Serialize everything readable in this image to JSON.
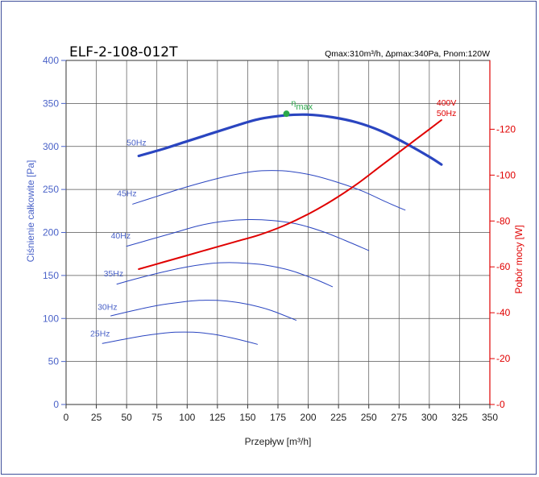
{
  "chart_data": {
    "type": "line",
    "title": "ELF-2-108-012T",
    "specs": "Qmax:310m³/h, Δpmax:340Pa, Pnom:120W",
    "xlabel": "Przepływ [m³/h]",
    "ylabel": "Ciśnienie całkowite [Pa]",
    "y2label": "Pobór mocy [W]",
    "xlim": [
      0,
      350
    ],
    "ylim": [
      0,
      400
    ],
    "y2lim": [
      0,
      150
    ],
    "xticks": [
      0,
      25,
      50,
      75,
      100,
      125,
      150,
      175,
      200,
      225,
      250,
      275,
      300,
      325,
      350
    ],
    "yticks": [
      0,
      50,
      100,
      150,
      200,
      250,
      300,
      350,
      400
    ],
    "y2ticks": [
      0,
      20,
      40,
      60,
      80,
      100,
      120
    ],
    "grid": true,
    "colors": {
      "pressure": "#2a45c0",
      "power": "#e00000",
      "optimum": "#2aa84a",
      "grid": "#555555"
    },
    "series": [
      {
        "name": "50Hz",
        "axis": "pressure",
        "width": 3.2,
        "x": [
          60,
          80,
          100,
          120,
          140,
          160,
          180,
          200,
          220,
          240,
          260,
          280,
          300,
          310
        ],
        "y": [
          289,
          297,
          306,
          315,
          324,
          332,
          336,
          337,
          334,
          328,
          318,
          304,
          288,
          279
        ]
      },
      {
        "name": "45Hz",
        "axis": "pressure",
        "width": 1,
        "x": [
          55,
          75,
          95,
          115,
          135,
          155,
          170,
          185,
          205,
          225,
          245,
          265,
          280
        ],
        "y": [
          233,
          242,
          251,
          259,
          266,
          271,
          272,
          271,
          266,
          258,
          248,
          235,
          226
        ]
      },
      {
        "name": "40Hz",
        "axis": "pressure",
        "width": 1,
        "x": [
          50,
          70,
          90,
          110,
          130,
          150,
          170,
          190,
          210,
          230,
          250
        ],
        "y": [
          184,
          192,
          200,
          208,
          213,
          215,
          214,
          210,
          202,
          191,
          179
        ]
      },
      {
        "name": "35Hz",
        "axis": "pressure",
        "width": 1,
        "x": [
          42,
          60,
          80,
          100,
          120,
          135,
          150,
          165,
          185,
          205,
          220
        ],
        "y": [
          140,
          147,
          154,
          160,
          164,
          165,
          164,
          162,
          156,
          146,
          137
        ]
      },
      {
        "name": "30Hz",
        "axis": "pressure",
        "width": 1,
        "x": [
          37,
          55,
          75,
          95,
          110,
          125,
          140,
          155,
          170,
          190
        ],
        "y": [
          103,
          109,
          115,
          119,
          121,
          121,
          119,
          115,
          109,
          98
        ]
      },
      {
        "name": "25Hz",
        "axis": "pressure",
        "width": 1,
        "x": [
          30,
          45,
          60,
          75,
          90,
          105,
          120,
          135,
          150,
          158
        ],
        "y": [
          71,
          75,
          79,
          82,
          84,
          84,
          82,
          78,
          73,
          70
        ]
      },
      {
        "name": "400V 50Hz",
        "axis": "power",
        "width": 2,
        "x": [
          60,
          80,
          100,
          120,
          140,
          160,
          180,
          200,
          220,
          240,
          260,
          280,
          300,
          310
        ],
        "y": [
          59,
          62,
          65,
          68,
          71,
          74,
          78,
          83,
          89,
          96,
          104,
          112,
          120,
          124
        ]
      }
    ],
    "curve_labels": [
      {
        "text": "50Hz",
        "x": 50,
        "y": 301
      },
      {
        "text": "45Hz",
        "x": 42,
        "y": 242
      },
      {
        "text": "40Hz",
        "x": 37,
        "y": 193
      },
      {
        "text": "35Hz",
        "x": 31,
        "y": 149
      },
      {
        "text": "30Hz",
        "x": 26,
        "y": 110
      },
      {
        "text": "25Hz",
        "x": 20,
        "y": 79
      }
    ],
    "power_label": {
      "lines": [
        "400V",
        "50Hz"
      ]
    },
    "optimum": {
      "label": "η",
      "sub": "max",
      "x": 182,
      "y": 338
    }
  }
}
